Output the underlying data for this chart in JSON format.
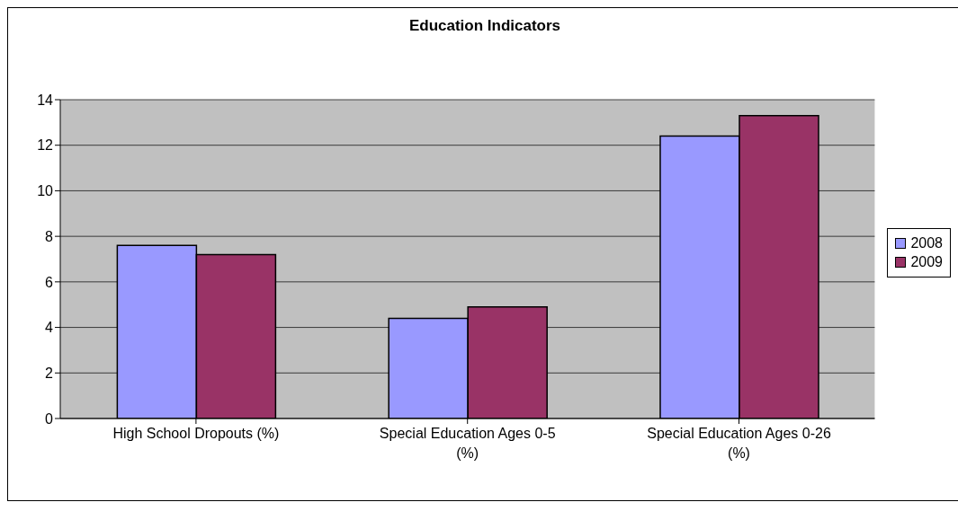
{
  "chart_data": {
    "type": "bar",
    "title": "Education Indicators",
    "categories": [
      "High School Dropouts (%)",
      "Special Education Ages 0-5 (%)",
      "Special Education Ages 0-26 (%)"
    ],
    "series": [
      {
        "name": "2008",
        "color": "#9999ff",
        "values": [
          7.6,
          4.4,
          12.4
        ]
      },
      {
        "name": "2009",
        "color": "#993366",
        "values": [
          7.2,
          4.9,
          13.3
        ]
      }
    ],
    "ylim": [
      0,
      14
    ],
    "yticks": [
      0,
      2,
      4,
      6,
      8,
      10,
      12,
      14
    ],
    "grid": "y",
    "legend": "right"
  }
}
